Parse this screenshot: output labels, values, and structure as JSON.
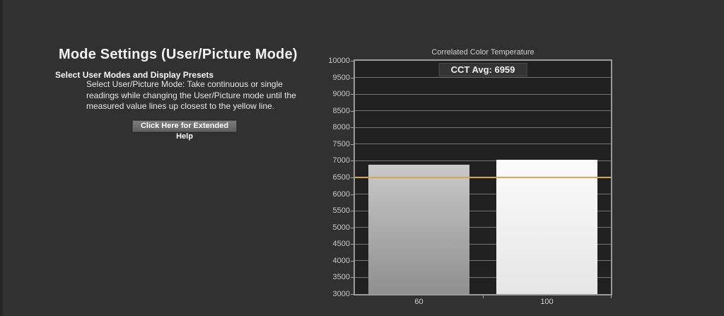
{
  "page": {
    "background_color": "#313131"
  },
  "left_panel": {
    "title": "Mode Settings (User/Picture Mode)",
    "heading": "Select User Modes and Display Presets",
    "instructions_lines": [
      "Select User/Picture Mode: Take continuous or single",
      "readings while changing the User/Picture mode until the",
      "measured value lines up closest to the yellow line."
    ],
    "help_button_label": "Click Here for Extended Help"
  },
  "chart_data": {
    "type": "bar",
    "title": "Correlated Color Temperature",
    "overlay_label": "CCT Avg: 6959",
    "avg": 6959,
    "categories": [
      "60",
      "100"
    ],
    "values": [
      6885,
      7033
    ],
    "target_line": {
      "value": 6500,
      "color": "#d2a94e"
    },
    "ylim": [
      3000,
      10000
    ],
    "ytick_step": 500,
    "grid": true,
    "legend": "none",
    "plot_background": "#212121",
    "bar_gradients": [
      [
        "#c9c9c9",
        "#8f8f8f"
      ],
      [
        "#fbfbfb",
        "#e6e6e6"
      ]
    ]
  }
}
